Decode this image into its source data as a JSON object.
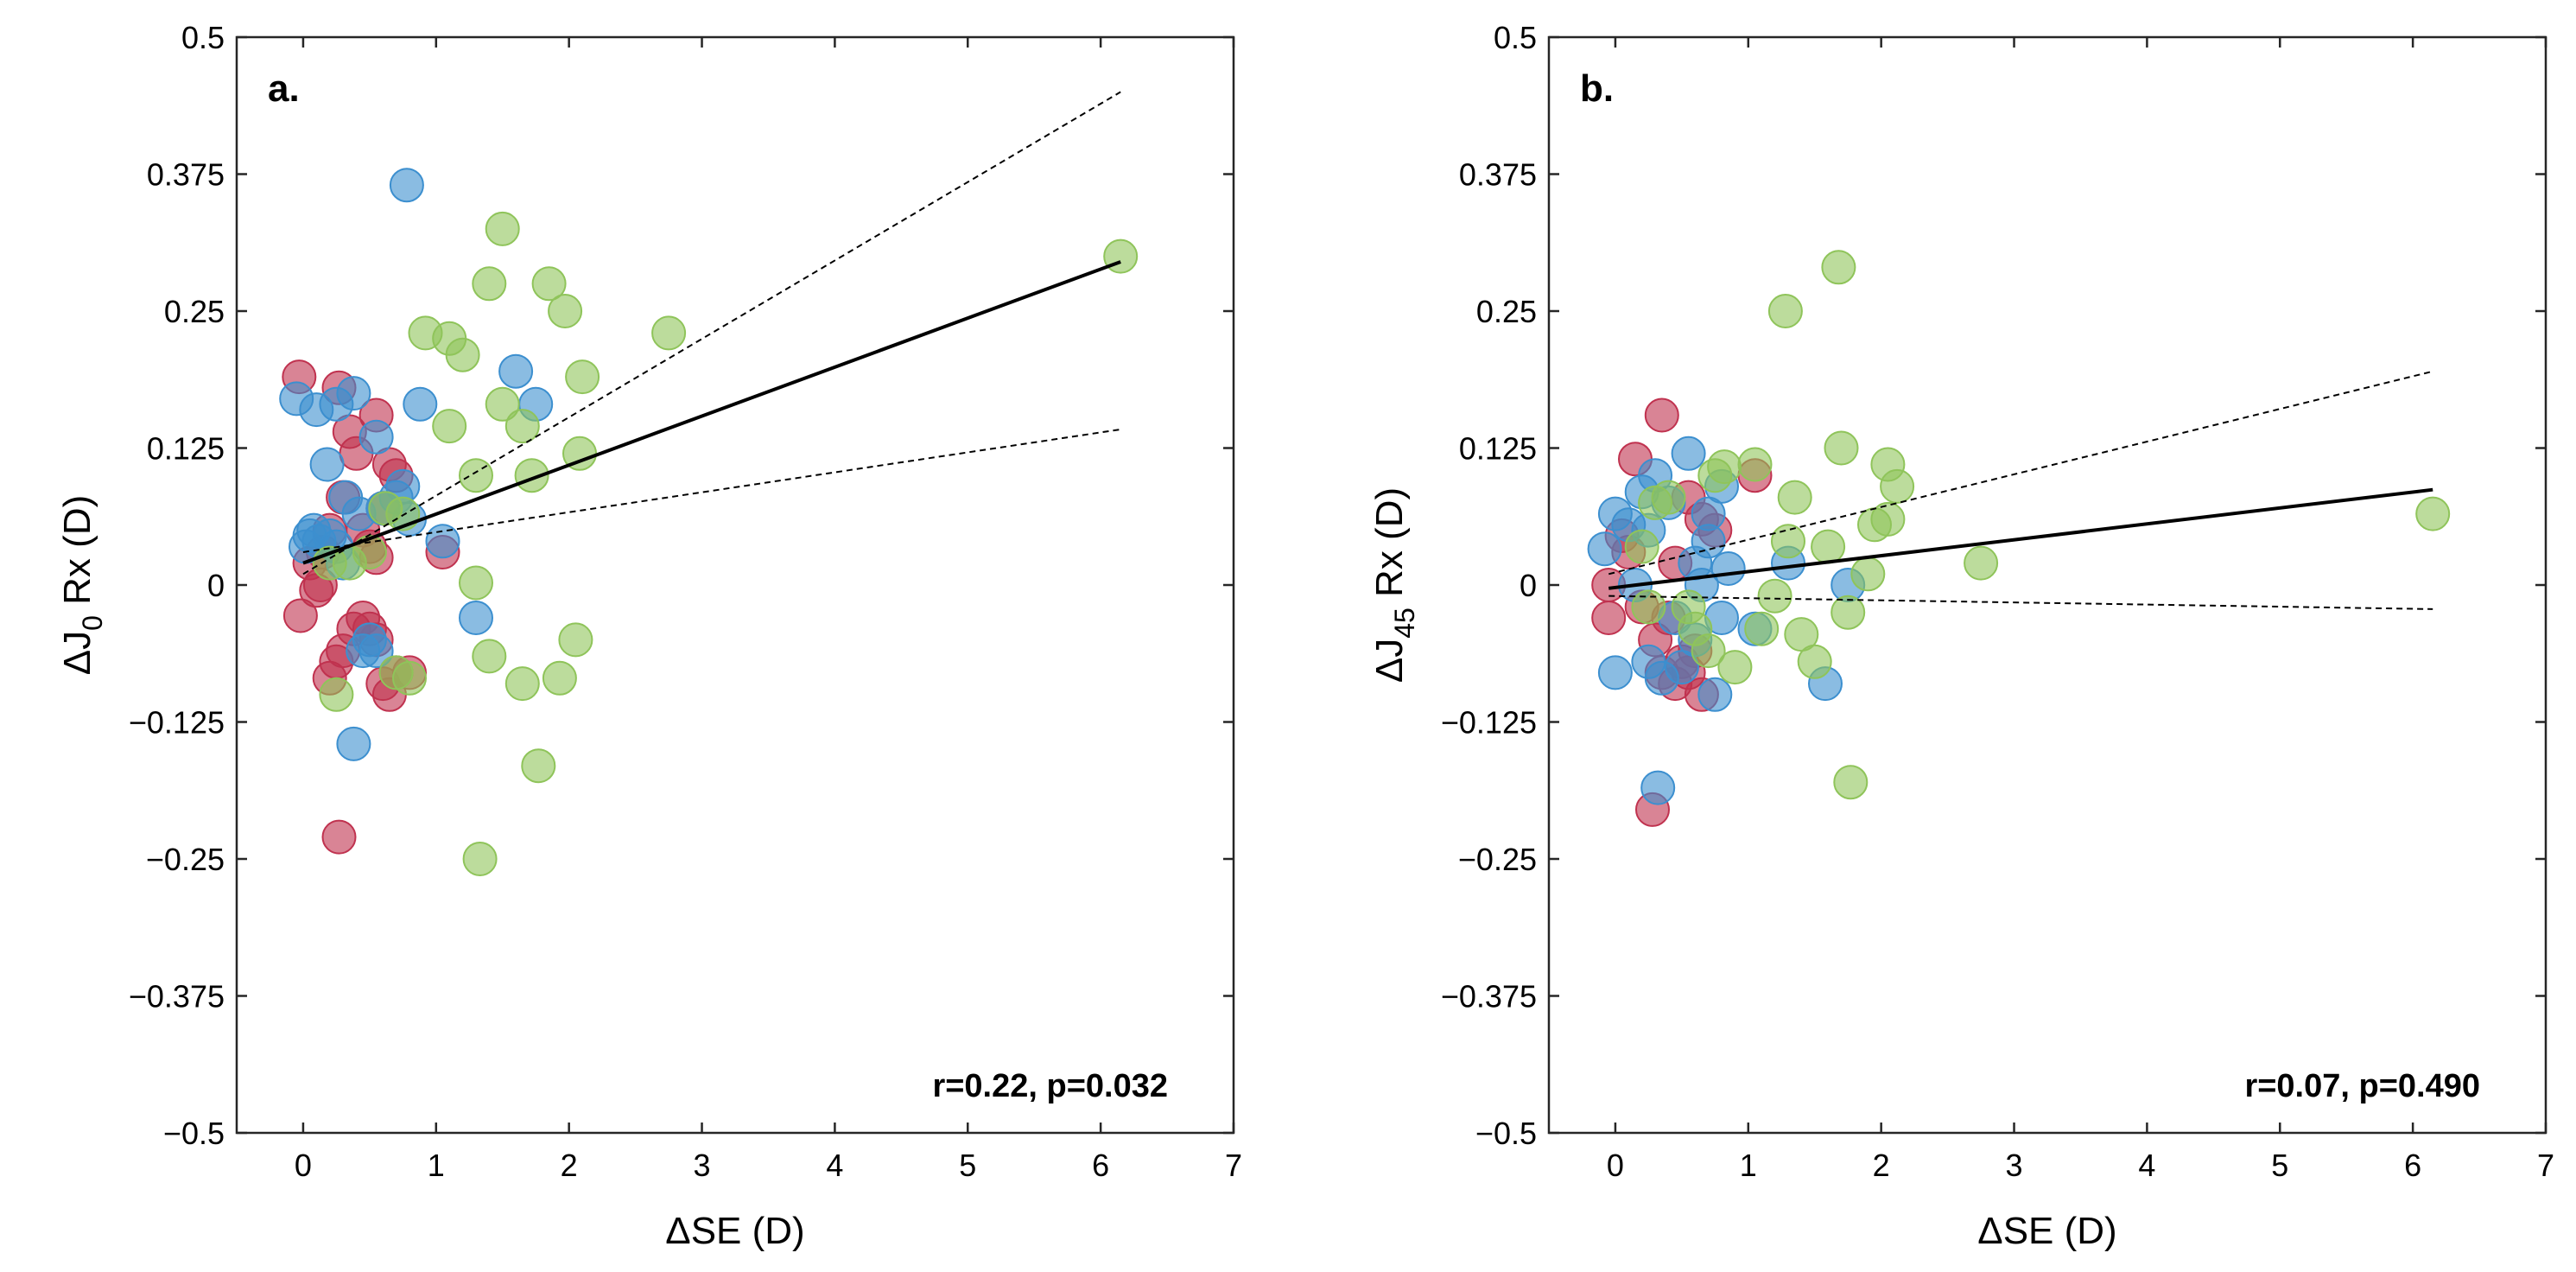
{
  "chart_data": [
    {
      "type": "scatter",
      "panel_label": "a.",
      "ylabel_main": "ΔJ",
      "ylabel_sub": "0",
      "ylabel_rest": " Rx (D)",
      "xlabel": "ΔSE  (D)",
      "stats": "r=0.22, p=0.032",
      "xlim": [
        -0.5,
        7
      ],
      "ylim": [
        -0.5,
        0.5
      ],
      "xticks": [
        0,
        1,
        2,
        3,
        4,
        5,
        6,
        7
      ],
      "xtick_labels": [
        "0",
        "1",
        "2",
        "3",
        "4",
        "5",
        "6",
        "7"
      ],
      "yticks": [
        -0.5,
        -0.375,
        -0.25,
        -0.125,
        0,
        0.125,
        0.25,
        0.375,
        0.5
      ],
      "ytick_labels": [
        "−0.5",
        "−0.375",
        "−0.25",
        "−0.125",
        "0",
        "0.125",
        "0.25",
        "0.375",
        "0.5"
      ],
      "fit_line": {
        "x": [
          0,
          6.15
        ],
        "y": [
          0.02,
          0.295
        ]
      },
      "ci_upper": {
        "x": [
          0,
          6.15
        ],
        "y": [
          0.01,
          0.45
        ]
      },
      "ci_lower": {
        "x": [
          0,
          6.15
        ],
        "y": [
          0.03,
          0.142
        ]
      },
      "series": [
        {
          "name": "red",
          "color": "#c0324f",
          "points": [
            [
              -0.03,
              0.19
            ],
            [
              0.27,
              0.18
            ],
            [
              0.55,
              0.155
            ],
            [
              -0.02,
              -0.028
            ],
            [
              0.1,
              -0.005
            ],
            [
              0.13,
              0.0
            ],
            [
              0.2,
              -0.085
            ],
            [
              0.25,
              -0.07
            ],
            [
              0.3,
              -0.06
            ],
            [
              0.35,
              0.14
            ],
            [
              0.4,
              0.12
            ],
            [
              0.38,
              -0.04
            ],
            [
              0.45,
              -0.03
            ],
            [
              0.5,
              -0.04
            ],
            [
              0.55,
              -0.05
            ],
            [
              0.6,
              -0.09
            ],
            [
              0.65,
              -0.1
            ],
            [
              0.7,
              -0.08
            ],
            [
              0.8,
              -0.08
            ],
            [
              0.27,
              -0.23
            ],
            [
              0.3,
              0.08
            ],
            [
              0.45,
              0.05
            ],
            [
              0.5,
              0.035
            ],
            [
              0.55,
              0.025
            ],
            [
              0.6,
              0.07
            ],
            [
              0.05,
              0.02
            ],
            [
              0.15,
              0.03
            ],
            [
              0.2,
              0.05
            ],
            [
              1.05,
              0.03
            ],
            [
              0.65,
              0.11
            ],
            [
              0.7,
              0.1
            ]
          ]
        },
        {
          "name": "blue",
          "color": "#3c8fcf",
          "points": [
            [
              -0.05,
              0.17
            ],
            [
              0.1,
              0.16
            ],
            [
              0.25,
              0.165
            ],
            [
              0.38,
              0.175
            ],
            [
              0.55,
              0.135
            ],
            [
              0.78,
              0.365
            ],
            [
              0.88,
              0.165
            ],
            [
              0.38,
              -0.145
            ],
            [
              0.18,
              0.11
            ],
            [
              0.32,
              0.08
            ],
            [
              0.42,
              0.065
            ],
            [
              0.02,
              0.035
            ],
            [
              0.05,
              0.045
            ],
            [
              0.08,
              0.05
            ],
            [
              0.12,
              0.04
            ],
            [
              0.2,
              0.045
            ],
            [
              0.25,
              0.035
            ],
            [
              0.3,
              0.02
            ],
            [
              0.45,
              -0.06
            ],
            [
              0.5,
              -0.05
            ],
            [
              0.55,
              -0.06
            ],
            [
              0.6,
              0.07
            ],
            [
              0.7,
              0.08
            ],
            [
              0.75,
              0.09
            ],
            [
              0.8,
              0.06
            ],
            [
              1.05,
              0.04
            ],
            [
              1.3,
              -0.03
            ],
            [
              1.6,
              0.195
            ],
            [
              1.75,
              0.165
            ]
          ]
        },
        {
          "name": "green",
          "color": "#8fc45a",
          "points": [
            [
              6.15,
              0.3
            ],
            [
              1.5,
              0.325
            ],
            [
              1.4,
              0.275
            ],
            [
              1.85,
              0.275
            ],
            [
              1.97,
              0.25
            ],
            [
              2.75,
              0.23
            ],
            [
              0.92,
              0.23
            ],
            [
              1.1,
              0.225
            ],
            [
              1.2,
              0.21
            ],
            [
              2.1,
              0.19
            ],
            [
              1.5,
              0.165
            ],
            [
              1.65,
              0.145
            ],
            [
              1.1,
              0.145
            ],
            [
              2.08,
              0.12
            ],
            [
              1.72,
              0.1
            ],
            [
              1.3,
              0.1
            ],
            [
              1.3,
              0.002
            ],
            [
              1.4,
              -0.065
            ],
            [
              1.65,
              -0.09
            ],
            [
              1.93,
              -0.085
            ],
            [
              2.05,
              -0.05
            ],
            [
              1.77,
              -0.165
            ],
            [
              1.33,
              -0.25
            ],
            [
              0.25,
              -0.1
            ],
            [
              0.7,
              -0.08
            ],
            [
              0.8,
              -0.085
            ],
            [
              0.75,
              0.065
            ],
            [
              0.2,
              0.02
            ],
            [
              0.35,
              0.02
            ],
            [
              0.5,
              0.03
            ],
            [
              0.62,
              0.07
            ]
          ]
        }
      ]
    },
    {
      "type": "scatter",
      "panel_label": "b.",
      "ylabel_main": "ΔJ",
      "ylabel_sub": "45",
      "ylabel_rest": " Rx (D)",
      "xlabel": "ΔSE  (D)",
      "stats": "r=0.07, p=0.490",
      "xlim": [
        -0.5,
        7
      ],
      "ylim": [
        -0.5,
        0.5
      ],
      "xticks": [
        0,
        1,
        2,
        3,
        4,
        5,
        6,
        7
      ],
      "xtick_labels": [
        "0",
        "1",
        "2",
        "3",
        "4",
        "5",
        "6",
        "7"
      ],
      "yticks": [
        -0.5,
        -0.375,
        -0.25,
        -0.125,
        0,
        0.125,
        0.25,
        0.375,
        0.5
      ],
      "ytick_labels": [
        "−0.5",
        "−0.375",
        "−0.25",
        "−0.125",
        "0",
        "0.125",
        "0.25",
        "0.375",
        "0.5"
      ],
      "fit_line": {
        "x": [
          -0.05,
          6.15
        ],
        "y": [
          -0.003,
          0.087
        ]
      },
      "ci_upper": {
        "x": [
          -0.05,
          6.15
        ],
        "y": [
          0.01,
          0.195
        ]
      },
      "ci_lower": {
        "x": [
          -0.05,
          6.15
        ],
        "y": [
          -0.01,
          -0.022
        ]
      },
      "series": [
        {
          "name": "red",
          "color": "#c0324f",
          "points": [
            [
              0.35,
              0.155
            ],
            [
              0.15,
              0.115
            ],
            [
              1.05,
              0.1
            ],
            [
              -0.05,
              0.0
            ],
            [
              -0.05,
              -0.03
            ],
            [
              0.05,
              0.045
            ],
            [
              0.1,
              0.03
            ],
            [
              0.2,
              -0.02
            ],
            [
              0.3,
              -0.05
            ],
            [
              0.35,
              -0.08
            ],
            [
              0.45,
              -0.09
            ],
            [
              0.5,
              -0.07
            ],
            [
              0.55,
              -0.08
            ],
            [
              0.6,
              -0.06
            ],
            [
              0.65,
              -0.1
            ],
            [
              0.28,
              -0.205
            ],
            [
              0.55,
              0.08
            ],
            [
              0.65,
              0.06
            ],
            [
              0.75,
              0.05
            ],
            [
              0.45,
              0.02
            ],
            [
              0.4,
              -0.03
            ]
          ]
        },
        {
          "name": "blue",
          "color": "#3c8fcf",
          "points": [
            [
              0.55,
              0.12
            ],
            [
              0.8,
              0.09
            ],
            [
              0.3,
              0.1
            ],
            [
              0.2,
              0.085
            ],
            [
              0.4,
              0.075
            ],
            [
              -0.08,
              0.033
            ],
            [
              0.0,
              0.065
            ],
            [
              0.1,
              0.055
            ],
            [
              0.25,
              0.05
            ],
            [
              0.7,
              0.04
            ],
            [
              0.85,
              0.015
            ],
            [
              0.0,
              -0.08
            ],
            [
              0.25,
              -0.07
            ],
            [
              0.35,
              -0.085
            ],
            [
              0.5,
              -0.075
            ],
            [
              0.6,
              -0.05
            ],
            [
              0.75,
              -0.1
            ],
            [
              0.32,
              -0.185
            ],
            [
              1.58,
              -0.09
            ],
            [
              1.75,
              0.0
            ],
            [
              0.6,
              0.02
            ],
            [
              0.65,
              0.0
            ],
            [
              0.45,
              -0.03
            ],
            [
              0.15,
              0.0
            ],
            [
              0.8,
              -0.03
            ],
            [
              1.3,
              0.02
            ],
            [
              1.05,
              -0.04
            ],
            [
              0.7,
              0.065
            ]
          ]
        },
        {
          "name": "green",
          "color": "#8fc45a",
          "points": [
            [
              1.68,
              0.29
            ],
            [
              1.28,
              0.25
            ],
            [
              1.7,
              0.125
            ],
            [
              2.05,
              0.11
            ],
            [
              2.12,
              0.09
            ],
            [
              1.05,
              0.11
            ],
            [
              1.35,
              0.08
            ],
            [
              0.82,
              0.108
            ],
            [
              0.75,
              0.1
            ],
            [
              1.3,
              0.04
            ],
            [
              1.6,
              0.035
            ],
            [
              1.95,
              0.055
            ],
            [
              2.05,
              0.06
            ],
            [
              2.75,
              0.02
            ],
            [
              6.15,
              0.065
            ],
            [
              1.2,
              -0.01
            ],
            [
              1.4,
              -0.045
            ],
            [
              1.5,
              -0.07
            ],
            [
              1.75,
              -0.025
            ],
            [
              1.9,
              0.01
            ],
            [
              1.77,
              -0.18
            ],
            [
              0.9,
              -0.075
            ],
            [
              0.7,
              -0.06
            ],
            [
              1.1,
              -0.04
            ],
            [
              0.3,
              0.075
            ],
            [
              0.4,
              0.08
            ],
            [
              0.2,
              0.035
            ],
            [
              0.25,
              -0.02
            ],
            [
              0.55,
              -0.02
            ],
            [
              0.6,
              -0.04
            ]
          ]
        }
      ]
    }
  ]
}
